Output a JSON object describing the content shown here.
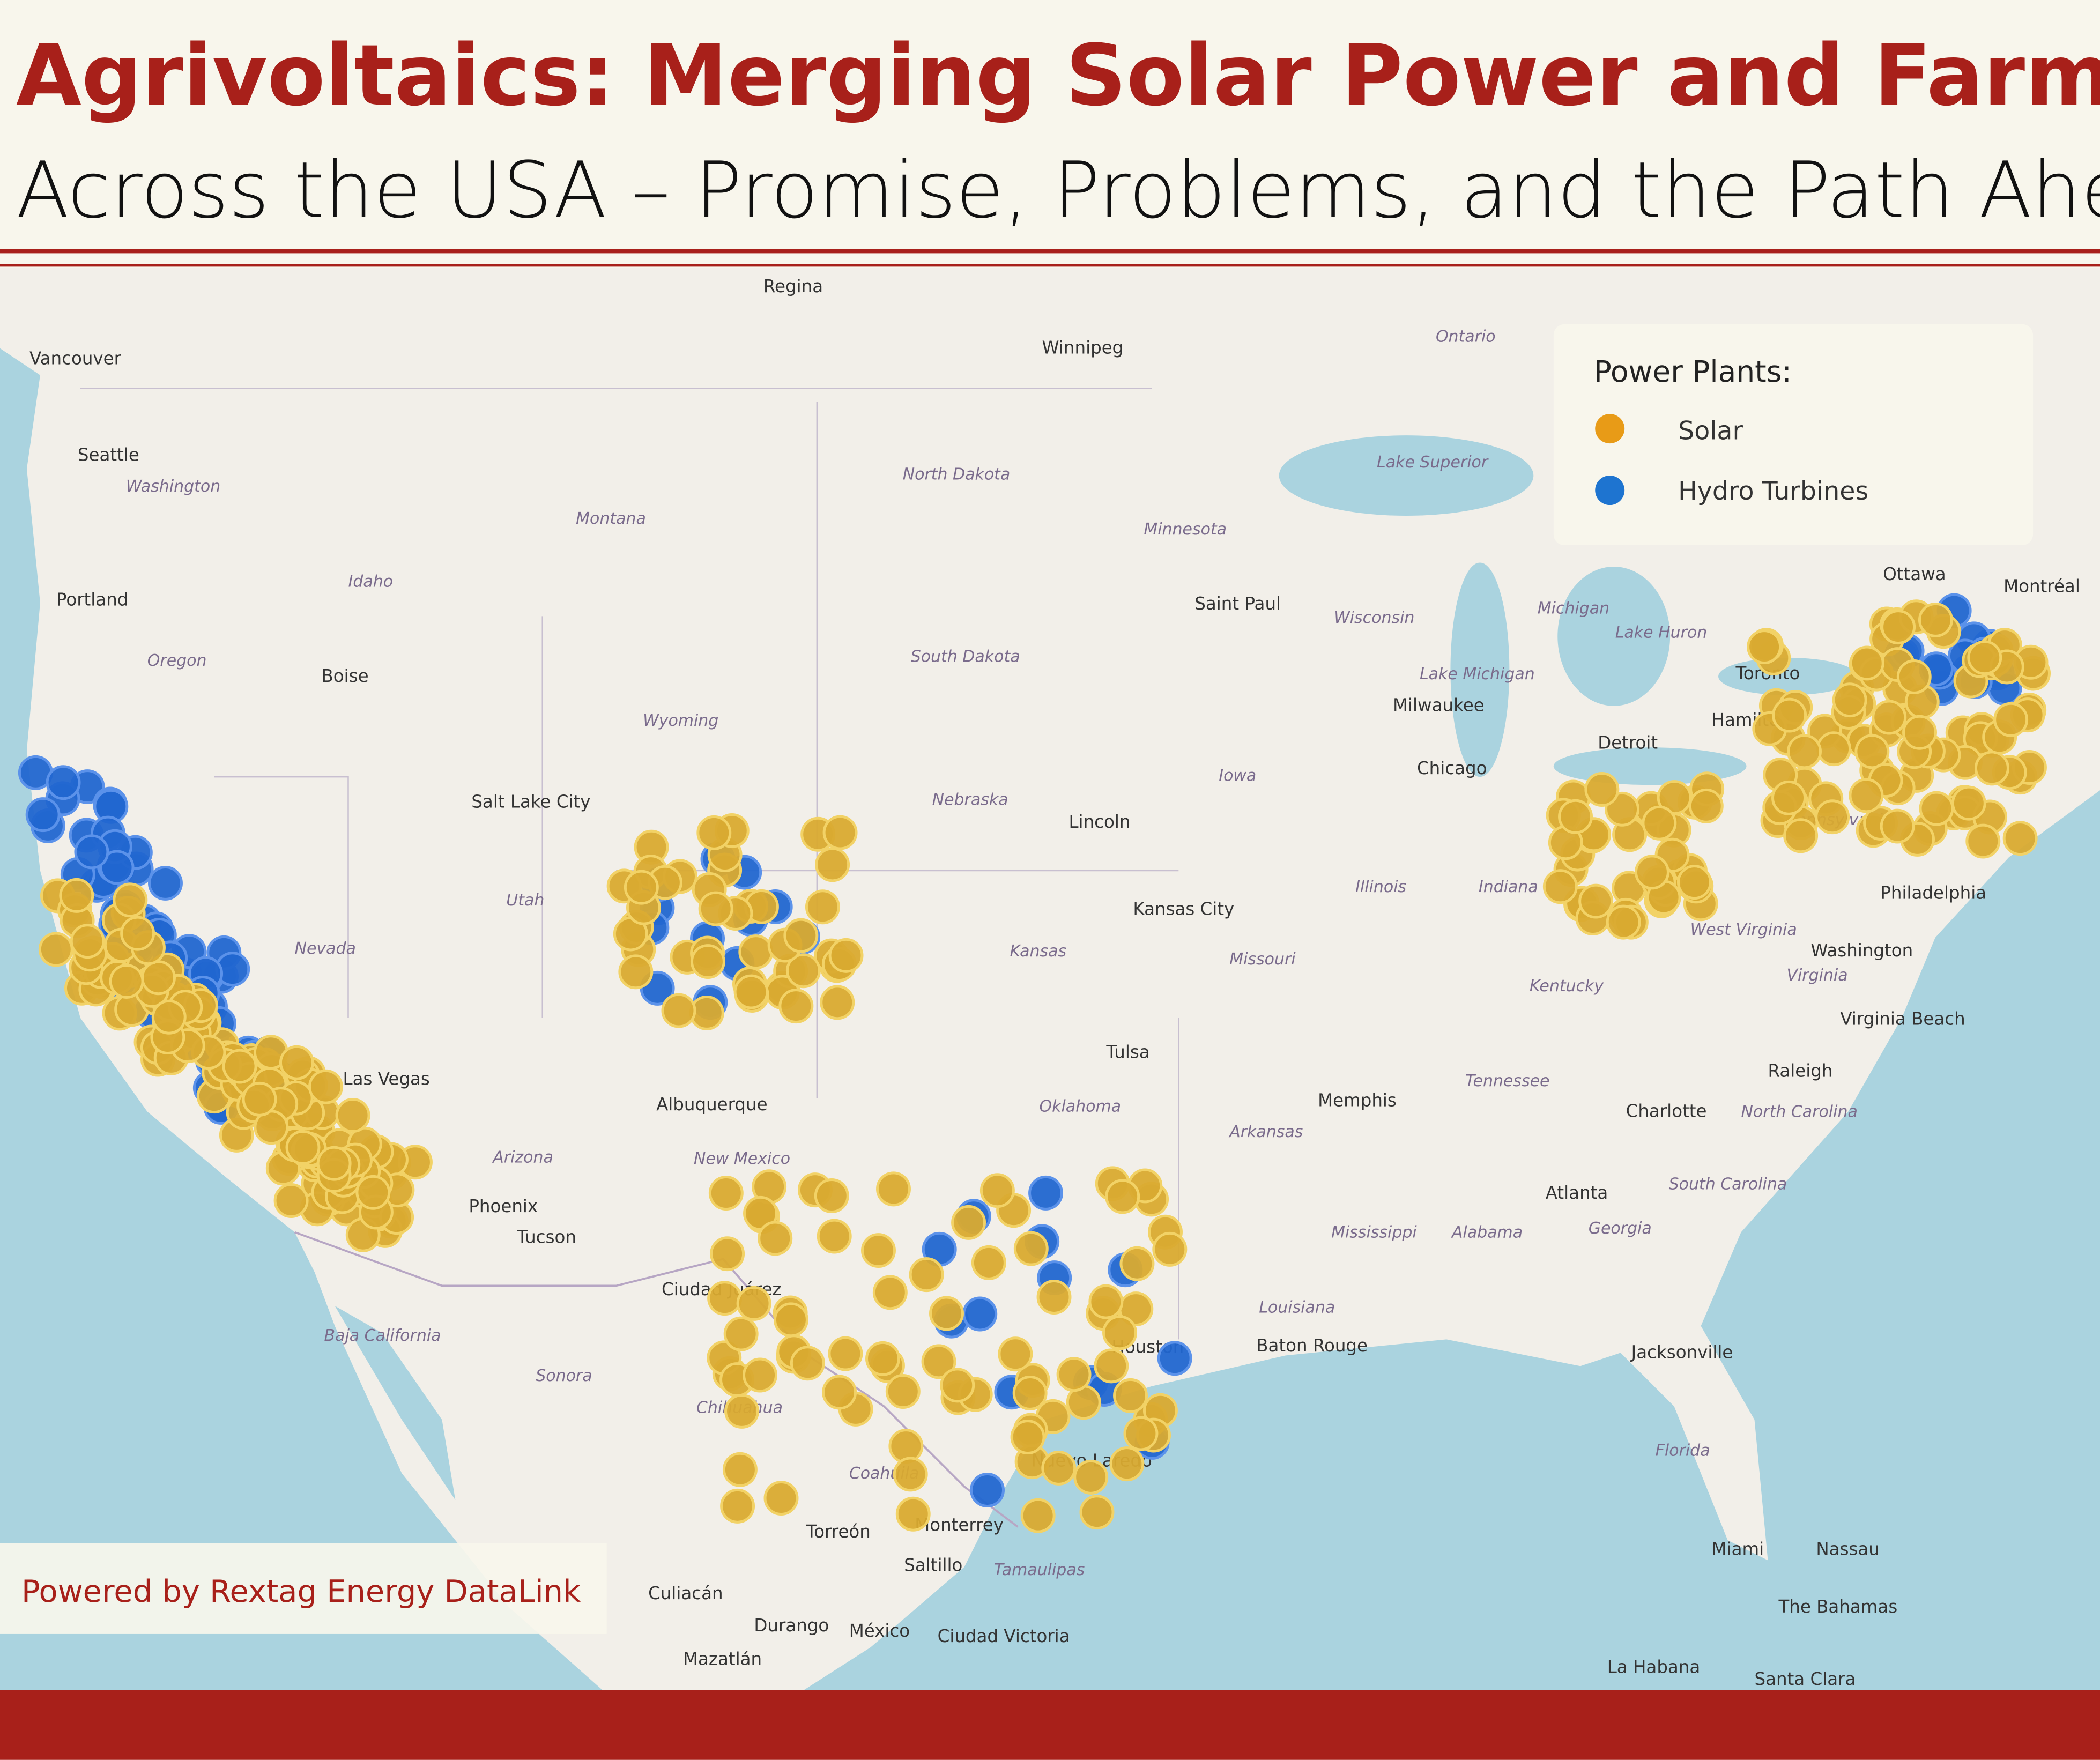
{
  "header": {
    "title": "Agrivoltaics: Merging Solar Power and Farming",
    "subtitle": "Across the USA – Promise, Problems, and the Path Ahead"
  },
  "legend": {
    "title": "Power Plants:",
    "items": [
      "Solar",
      "Hydro Turbines"
    ]
  },
  "footer": "Powered by Rextag Energy DataLink",
  "places": [
    "Regina",
    "Winnipeg",
    "Vancouver",
    "Seattle",
    "Portland",
    "Boise",
    "Salt Lake City",
    "Las Vegas",
    "Phoenix",
    "Tucson",
    "Albuquerque",
    "Ciudad Juárez",
    "Lincoln",
    "Kansas City",
    "Tulsa",
    "Memphis",
    "Saint Paul",
    "Milwaukee",
    "Chicago",
    "Detroit",
    "Toronto",
    "Hamilton",
    "Ottawa",
    "Montréal",
    "Philadelphia",
    "Washington",
    "Virginia Beach",
    "Raleigh",
    "Charlotte",
    "Atlanta",
    "Jacksonville",
    "Baton Rouge",
    "Houston",
    "Nuevo Laredo",
    "Monterrey",
    "Saltillo",
    "Torreón",
    "Culiacán",
    "Durango",
    "Mazatlán",
    "Ciudad Victoria",
    "México",
    "Miami",
    "Nassau",
    "The Bahamas",
    "La Habana",
    "Santa Clara"
  ],
  "regions": [
    "Washington",
    "Oregon",
    "Idaho",
    "Montana",
    "Nevada",
    "Utah",
    "Wyoming",
    "Arizona",
    "New Mexico",
    "North Dakota",
    "South Dakota",
    "Nebraska",
    "Kansas",
    "Oklahoma",
    "Minnesota",
    "Iowa",
    "Missouri",
    "Wisconsin",
    "Illinois",
    "Indiana",
    "Michigan",
    "Kentucky",
    "Tennessee",
    "Arkansas",
    "Mississippi",
    "Alabama",
    "Georgia",
    "Louisiana",
    "West Virginia",
    "Virginia",
    "North Carolina",
    "South Carolina",
    "Pennsylvania",
    "Florida",
    "Ontario",
    "Lake Superior",
    "Lake Michigan",
    "Lake Huron",
    "Baja California",
    "Sonora",
    "Chihuahua",
    "Coahuila",
    "Tamaulipas"
  ]
}
